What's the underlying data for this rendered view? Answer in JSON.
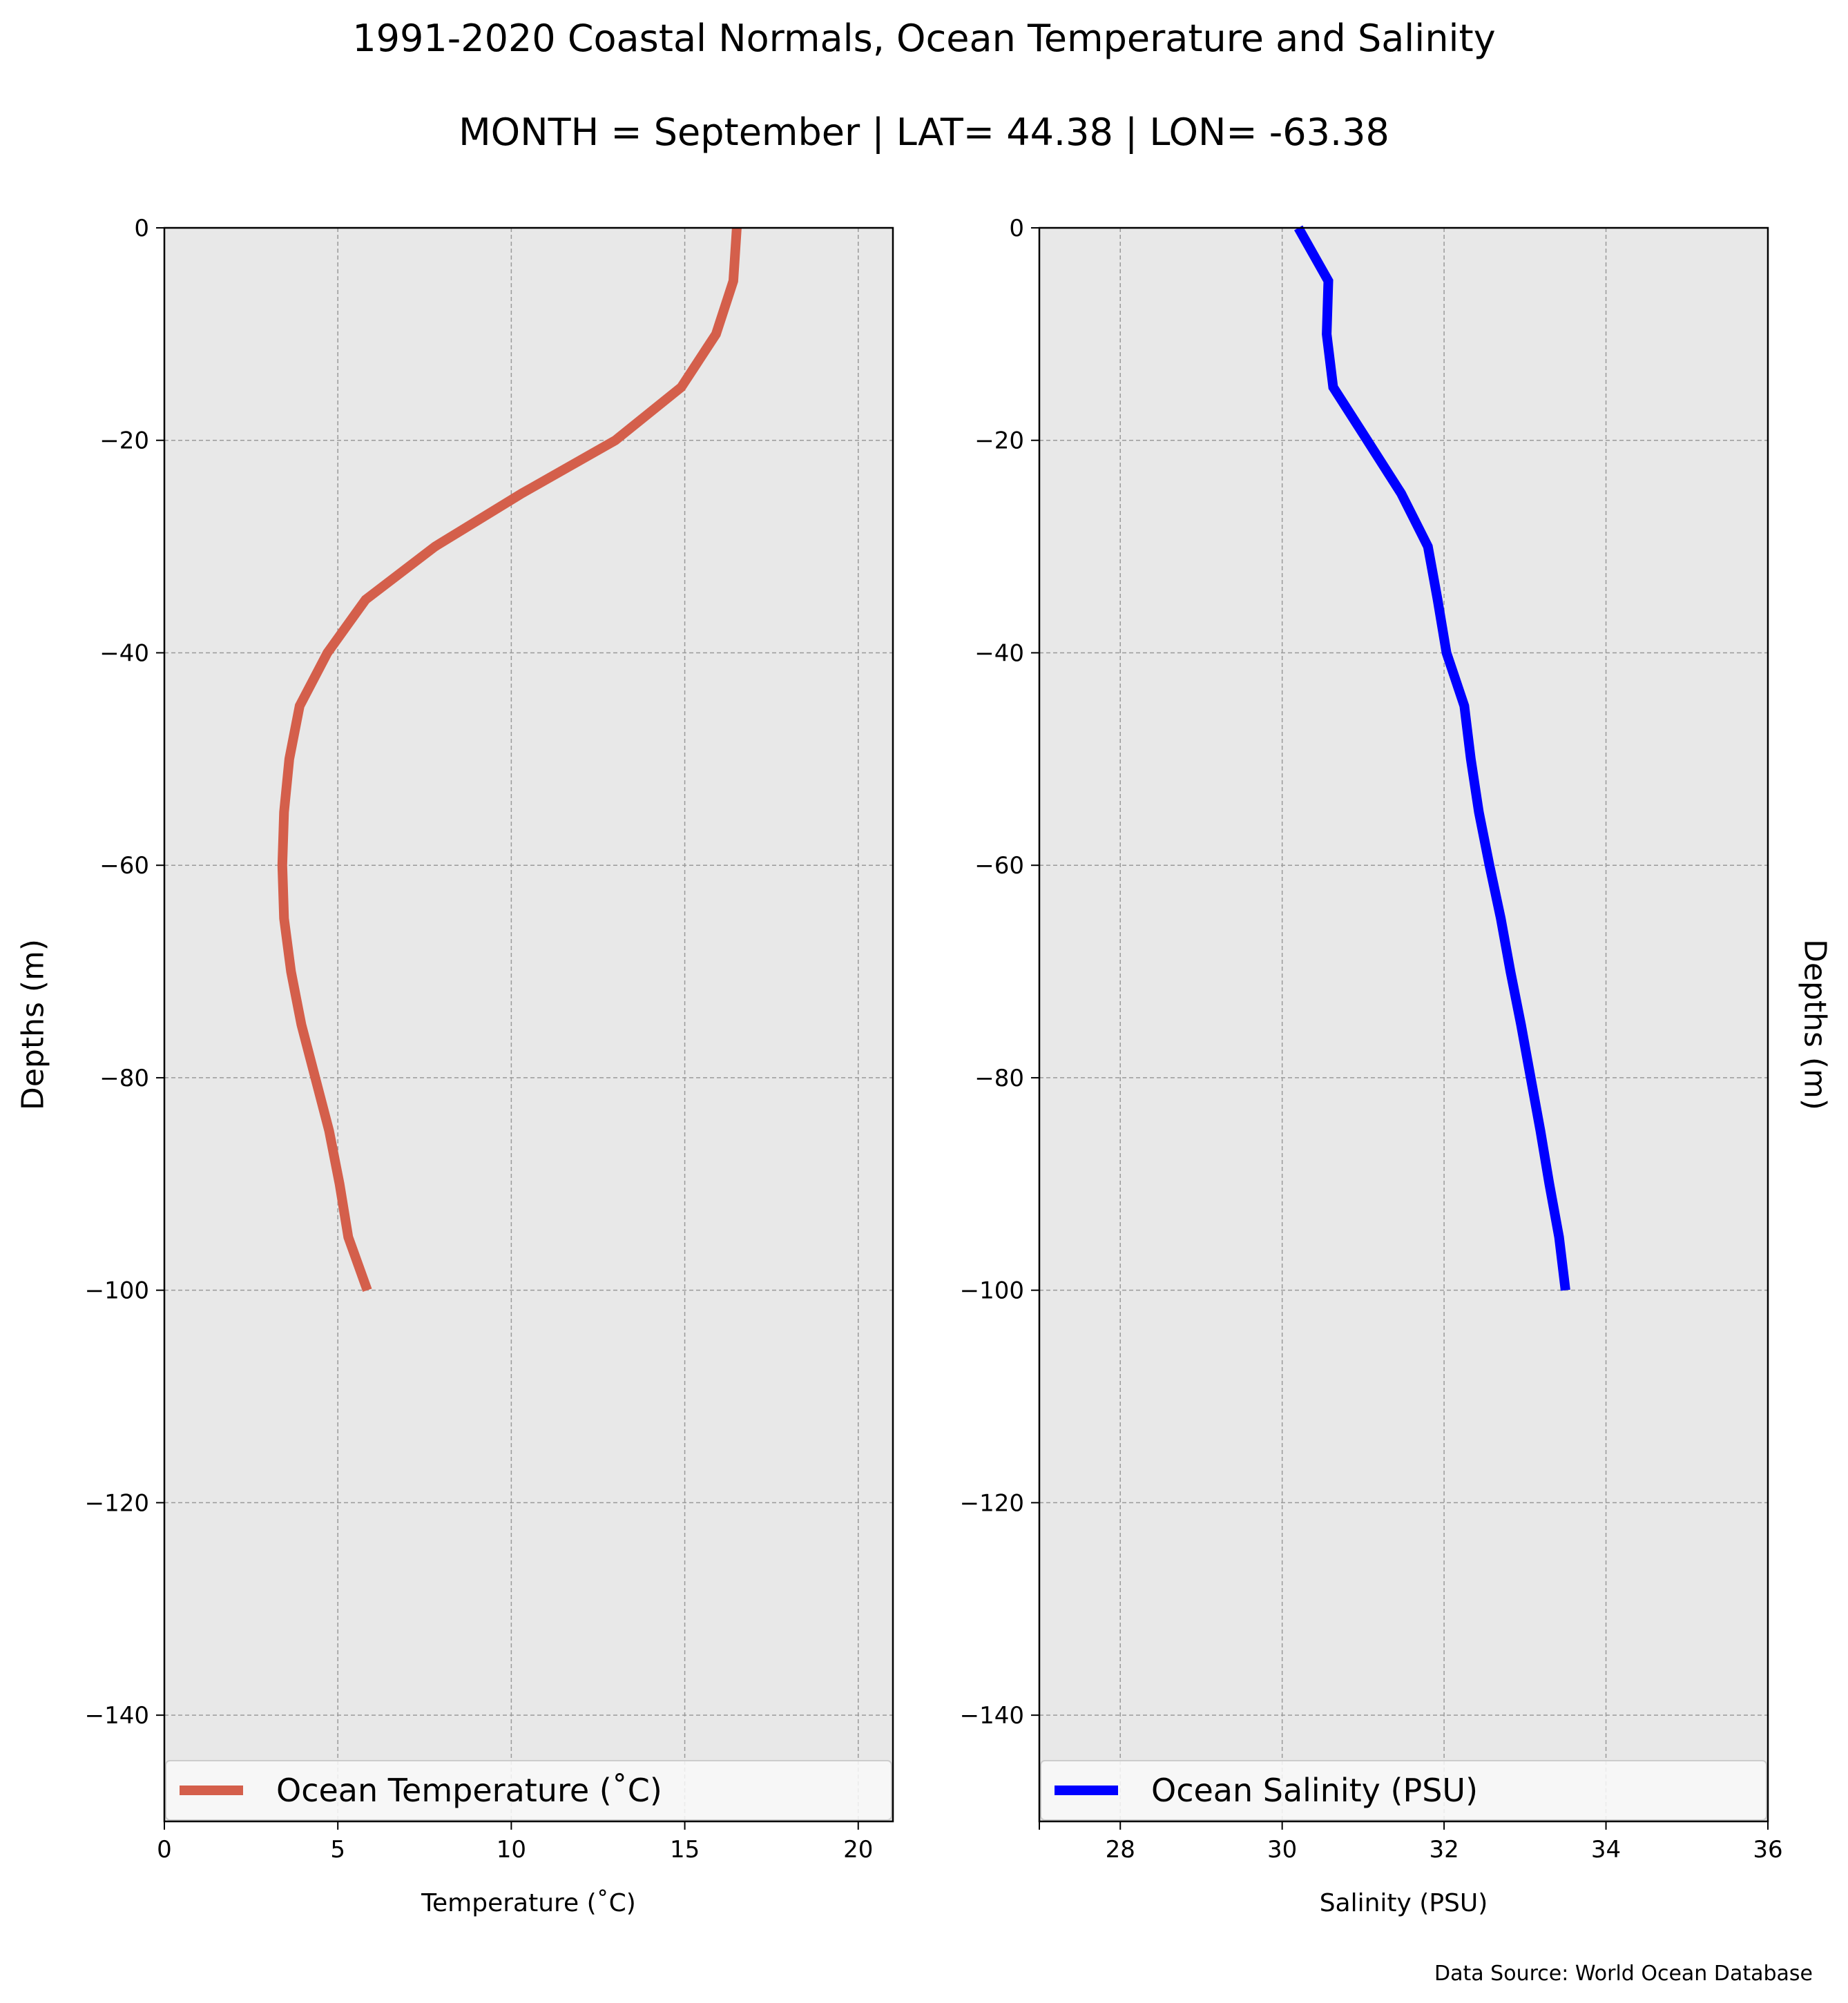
{
  "figure": {
    "title": "1991-2020 Coastal Normals, Ocean Temperature and Salinity",
    "subtitle": "MONTH = September | LAT= 44.38 | LON= -63.38",
    "footnote": "Data Source: World Ocean Database"
  },
  "colors": {
    "panel_background": "#e8e8e8",
    "grid": "#9a9a9a",
    "temperature_line": "#d45f4b",
    "salinity_line": "#0000ff",
    "legend_background": "#f9f9f9"
  },
  "chart_data": [
    {
      "type": "line",
      "title": "",
      "xlabel": "Temperature ($^\\circ$C)",
      "xlabel_display": "Temperature (˚C)",
      "ylabel": "Depths (m)",
      "xlim": [
        0,
        21
      ],
      "ylim": [
        -150,
        0
      ],
      "xticks": [
        0,
        5,
        10,
        15,
        20
      ],
      "xtick_labels": [
        "0",
        "5",
        "10",
        "15",
        "20"
      ],
      "yticks": [
        0,
        -20,
        -40,
        -60,
        -80,
        -100,
        -120,
        -140
      ],
      "ytick_labels": [
        "0",
        "−20",
        "−40",
        "−60",
        "−80",
        "−100",
        "−120",
        "−140"
      ],
      "grid": true,
      "legend_position": "lower center",
      "series": [
        {
          "name": "Ocean Temperature ($^\\circ$C)",
          "display_name": "Ocean Temperature (˚C)",
          "x": [
            16.5,
            16.4,
            15.9,
            14.9,
            13.0,
            10.3,
            7.8,
            5.8,
            4.7,
            3.9,
            3.6,
            3.45,
            3.4,
            3.45,
            3.65,
            3.95,
            4.35,
            4.75,
            5.05,
            5.3,
            5.85
          ],
          "y": [
            0,
            -5,
            -10,
            -15,
            -20,
            -25,
            -30,
            -35,
            -40,
            -45,
            -50,
            -55,
            -60,
            -65,
            -70,
            -75,
            -80,
            -85,
            -90,
            -95,
            -100
          ]
        }
      ]
    },
    {
      "type": "line",
      "title": "",
      "xlabel": "Salinity (PSU)",
      "ylabel": "Depths (m)",
      "xlim": [
        27,
        36
      ],
      "ylim": [
        -150,
        0
      ],
      "xticks": [
        28,
        30,
        32,
        34,
        36
      ],
      "xtick_labels": [
        "28",
        "30",
        "32",
        "34",
        "36"
      ],
      "yticks": [
        0,
        -20,
        -40,
        -60,
        -80,
        -100,
        -120,
        -140
      ],
      "ytick_labels": [
        "0",
        "−20",
        "−40",
        "−60",
        "−80",
        "−100",
        "−120",
        "−140"
      ],
      "grid": true,
      "legend_position": "lower center",
      "series": [
        {
          "name": "Ocean Salinity (PSU)",
          "x": [
            30.2,
            30.57,
            30.55,
            30.63,
            31.05,
            31.47,
            31.8,
            31.92,
            32.03,
            32.25,
            32.33,
            32.43,
            32.56,
            32.7,
            32.82,
            32.95,
            33.07,
            33.19,
            33.3,
            33.42,
            33.5
          ],
          "y": [
            0,
            -5,
            -10,
            -15,
            -20,
            -25,
            -30,
            -35,
            -40,
            -45,
            -50,
            -55,
            -60,
            -65,
            -70,
            -75,
            -80,
            -85,
            -90,
            -95,
            -100
          ]
        }
      ]
    }
  ]
}
